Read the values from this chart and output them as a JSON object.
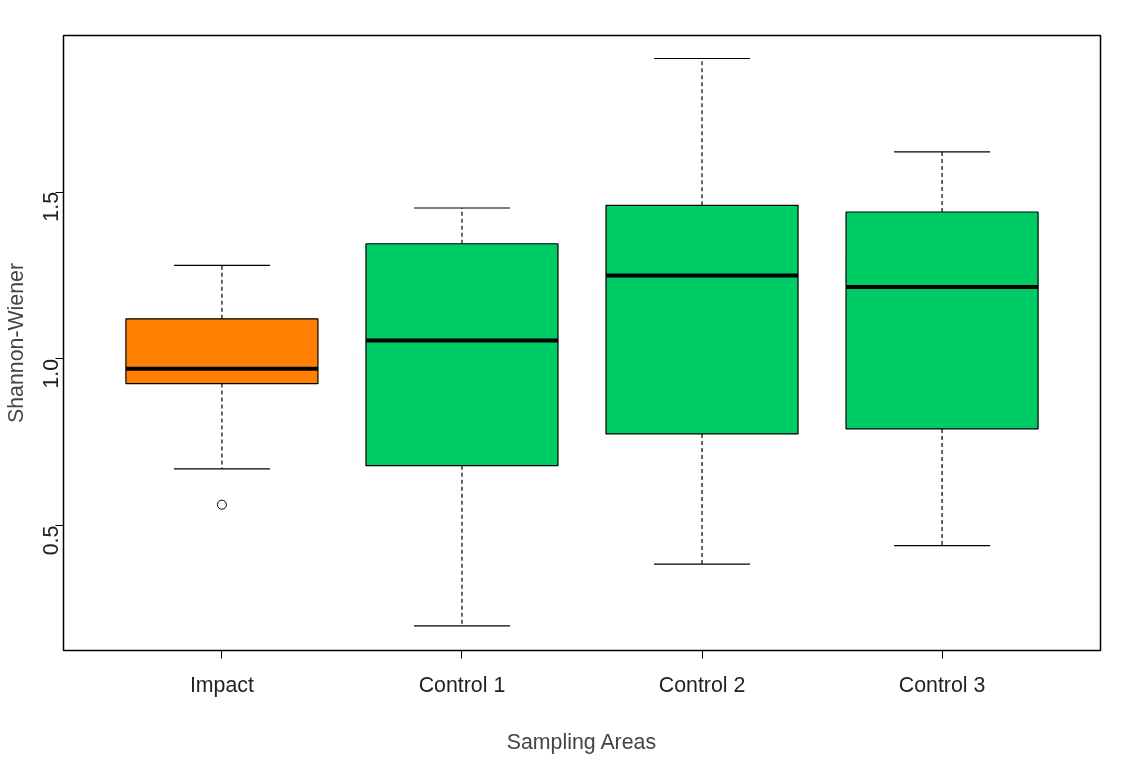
{
  "chart_data": {
    "type": "box",
    "xlabel": "Sampling Areas",
    "ylabel": "Shannon-Wiener",
    "categories": [
      "Impact",
      "Control 1",
      "Control 2",
      "Control 3"
    ],
    "colors": [
      "#ff7f00",
      "#00cc66",
      "#00cc66",
      "#00cc66"
    ],
    "boxes": [
      {
        "low": 0.67,
        "q1": 0.926,
        "median": 0.97,
        "q3": 1.12,
        "high": 1.28,
        "outliers": [
          0.563
        ]
      },
      {
        "low": 0.2,
        "q1": 0.68,
        "median": 1.055,
        "q3": 1.345,
        "high": 1.452
      },
      {
        "low": 0.385,
        "q1": 0.775,
        "median": 1.25,
        "q3": 1.46,
        "high": 1.9
      },
      {
        "low": 0.44,
        "q1": 0.79,
        "median": 1.215,
        "q3": 1.44,
        "high": 1.62
      }
    ],
    "ylim": [
      0.126,
      1.969
    ],
    "yticks": [
      0.5,
      {
        "value": 1.0,
        "label": "1.0"
      },
      1.5
    ]
  }
}
